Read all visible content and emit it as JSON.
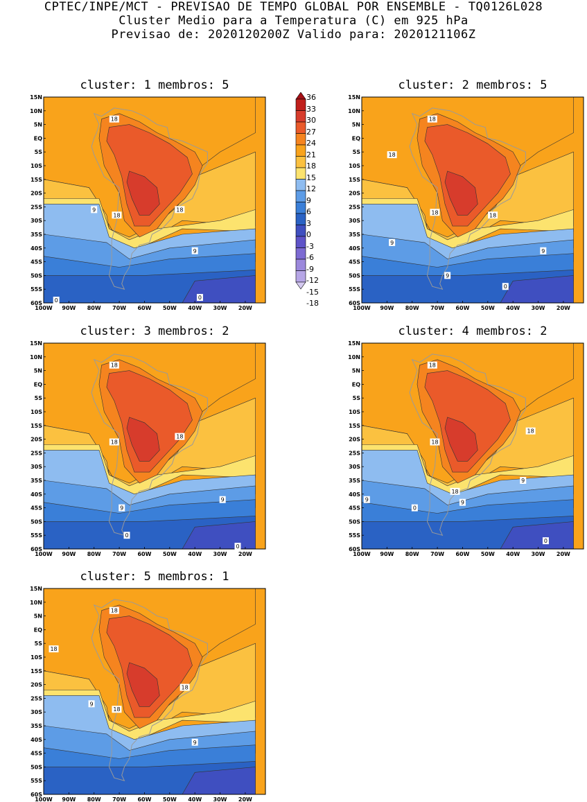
{
  "header": {
    "line1": "CPTEC/INPE/MCT - PREVISAO DE TEMPO GLOBAL POR ENSEMBLE - TQ0126L028",
    "line2": "Cluster Medio para a Temperatura (C) em 925 hPa",
    "line3": "Previsao de: 2020120200Z   Valido para: 2020121106Z"
  },
  "axes": {
    "lat_labels": [
      "15N",
      "10N",
      "5N",
      "EQ",
      "5S",
      "10S",
      "15S",
      "20S",
      "25S",
      "30S",
      "35S",
      "40S",
      "45S",
      "50S",
      "55S",
      "60S"
    ],
    "lon_labels": [
      "100W",
      "90W",
      "80W",
      "70W",
      "60W",
      "50W",
      "40W",
      "30W",
      "20W"
    ]
  },
  "colorbar": {
    "levels": [
      "36",
      "33",
      "30",
      "27",
      "24",
      "21",
      "18",
      "15",
      "12",
      "9",
      "6",
      "3",
      "0",
      "-3",
      "-6",
      "-9",
      "-12",
      "-15",
      "-18"
    ],
    "colors": {
      "above_33": "#a50f15",
      "30_33": "#c0201c",
      "27_30": "#d73c2c",
      "24_27": "#ea5a2a",
      "21_24": "#f5841f",
      "18_21": "#f9a31b",
      "15_18": "#fbc140",
      "12_15": "#fce36e",
      "9_12": "#8ebcf0",
      "6_9": "#5d9ce6",
      "3_6": "#3a7fd8",
      "0_3": "#2a62c4",
      "neg3_0": "#3f4fc0",
      "neg6_neg3": "#5e53c8",
      "neg9_neg6": "#7c6ad2",
      "neg12_neg9": "#9b88dc",
      "neg15_neg12": "#b6a6e6",
      "below_neg15": "#d4c9f0"
    }
  },
  "panels": [
    {
      "title": "cluster: 1   membros: 5",
      "labels": [
        {
          "text": "18",
          "lon": -72,
          "lat": 7
        },
        {
          "text": "9",
          "lon": -80,
          "lat": -26
        },
        {
          "text": "18",
          "lon": -71,
          "lat": -28
        },
        {
          "text": "18",
          "lon": -46,
          "lat": -26
        },
        {
          "text": "9",
          "lon": -40,
          "lat": -41
        },
        {
          "text": "0",
          "lon": -95,
          "lat": -59
        },
        {
          "text": "0",
          "lon": -38,
          "lat": -58
        }
      ]
    },
    {
      "title": "cluster: 2   membros: 5",
      "labels": [
        {
          "text": "18",
          "lon": -72,
          "lat": 7
        },
        {
          "text": "18",
          "lon": -88,
          "lat": -6
        },
        {
          "text": "18",
          "lon": -71,
          "lat": -27
        },
        {
          "text": "18",
          "lon": -48,
          "lat": -28
        },
        {
          "text": "9",
          "lon": -88,
          "lat": -38
        },
        {
          "text": "9",
          "lon": -66,
          "lat": -50
        },
        {
          "text": "9",
          "lon": -28,
          "lat": -41
        },
        {
          "text": "0",
          "lon": -43,
          "lat": -54
        }
      ]
    },
    {
      "title": "cluster: 3   membros: 2",
      "labels": [
        {
          "text": "18",
          "lon": -72,
          "lat": 7
        },
        {
          "text": "18",
          "lon": -72,
          "lat": -21
        },
        {
          "text": "18",
          "lon": -46,
          "lat": -19
        },
        {
          "text": "9",
          "lon": -29,
          "lat": -42
        },
        {
          "text": "9",
          "lon": -69,
          "lat": -45
        },
        {
          "text": "0",
          "lon": -67,
          "lat": -55
        },
        {
          "text": "0",
          "lon": -23,
          "lat": -59
        }
      ]
    },
    {
      "title": "cluster: 4   membros: 2",
      "labels": [
        {
          "text": "18",
          "lon": -72,
          "lat": 7
        },
        {
          "text": "18",
          "lon": -71,
          "lat": -21
        },
        {
          "text": "18",
          "lon": -33,
          "lat": -17
        },
        {
          "text": "9",
          "lon": -36,
          "lat": -35
        },
        {
          "text": "9",
          "lon": -98,
          "lat": -42
        },
        {
          "text": "18",
          "lon": -63,
          "lat": -39
        },
        {
          "text": "9",
          "lon": -60,
          "lat": -43
        },
        {
          "text": "0",
          "lon": -79,
          "lat": -45
        },
        {
          "text": "0",
          "lon": -27,
          "lat": -57
        }
      ]
    },
    {
      "title": "cluster: 5   membros: 1",
      "labels": [
        {
          "text": "18",
          "lon": -72,
          "lat": 7
        },
        {
          "text": "18",
          "lon": -96,
          "lat": -7
        },
        {
          "text": "18",
          "lon": -44,
          "lat": -21
        },
        {
          "text": "9",
          "lon": -81,
          "lat": -27
        },
        {
          "text": "18",
          "lon": -71,
          "lat": -29
        },
        {
          "text": "9",
          "lon": -40,
          "lat": -41
        }
      ]
    }
  ]
}
